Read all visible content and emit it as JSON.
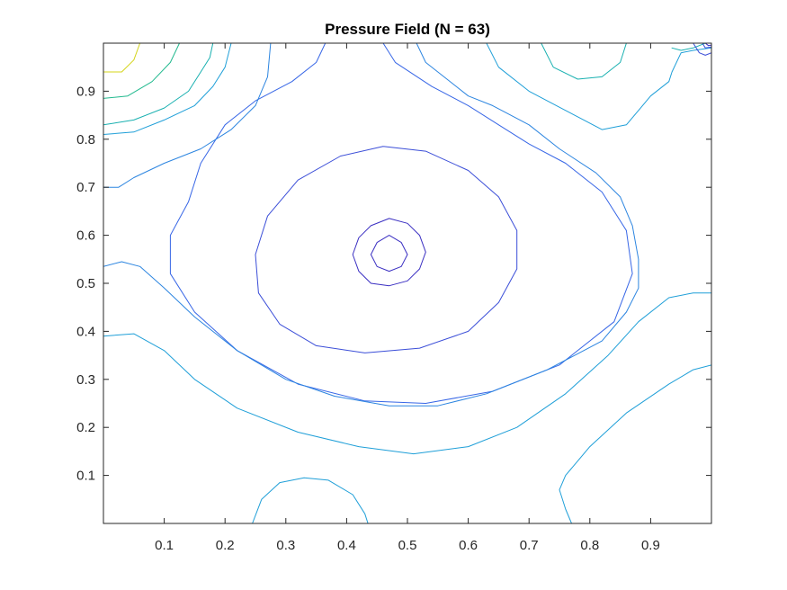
{
  "chart_data": {
    "type": "contour",
    "title": "Pressure Field (N = 63)",
    "xlabel": "",
    "ylabel": "",
    "xlim": [
      0,
      1
    ],
    "ylim": [
      0,
      1
    ],
    "xticks": [
      0.1,
      0.2,
      0.3,
      0.4,
      0.5,
      0.6,
      0.7,
      0.8,
      0.9
    ],
    "yticks": [
      0.1,
      0.2,
      0.3,
      0.4,
      0.5,
      0.6,
      0.7,
      0.8,
      0.9
    ],
    "xtick_labels": [
      "0.1",
      "0.2",
      "0.3",
      "0.4",
      "0.5",
      "0.6",
      "0.7",
      "0.8",
      "0.9"
    ],
    "ytick_labels": [
      "0.1",
      "0.2",
      "0.3",
      "0.4",
      "0.5",
      "0.6",
      "0.7",
      "0.8",
      "0.9"
    ],
    "grid": false,
    "colormap": "parula",
    "contours": [
      {
        "color": "#3a2fc2",
        "points": [
          [
            0.47,
            0.6
          ],
          [
            0.49,
            0.585
          ],
          [
            0.5,
            0.56
          ],
          [
            0.49,
            0.535
          ],
          [
            0.47,
            0.525
          ],
          [
            0.45,
            0.535
          ],
          [
            0.44,
            0.56
          ],
          [
            0.45,
            0.585
          ],
          [
            0.47,
            0.6
          ]
        ]
      },
      {
        "color": "#3a2fc2",
        "points": [
          [
            0.47,
            0.635
          ],
          [
            0.5,
            0.625
          ],
          [
            0.52,
            0.6
          ],
          [
            0.53,
            0.565
          ],
          [
            0.52,
            0.53
          ],
          [
            0.5,
            0.505
          ],
          [
            0.47,
            0.495
          ],
          [
            0.44,
            0.5
          ],
          [
            0.42,
            0.525
          ],
          [
            0.41,
            0.56
          ],
          [
            0.42,
            0.595
          ],
          [
            0.44,
            0.62
          ],
          [
            0.47,
            0.635
          ]
        ]
      },
      {
        "color": "#3b4ed8",
        "points": [
          [
            0.46,
            0.785
          ],
          [
            0.53,
            0.775
          ],
          [
            0.6,
            0.735
          ],
          [
            0.65,
            0.68
          ],
          [
            0.68,
            0.61
          ],
          [
            0.68,
            0.53
          ],
          [
            0.65,
            0.46
          ],
          [
            0.6,
            0.4
          ],
          [
            0.52,
            0.365
          ],
          [
            0.43,
            0.355
          ],
          [
            0.35,
            0.37
          ],
          [
            0.29,
            0.415
          ],
          [
            0.255,
            0.48
          ],
          [
            0.25,
            0.56
          ],
          [
            0.27,
            0.64
          ],
          [
            0.32,
            0.715
          ],
          [
            0.39,
            0.765
          ],
          [
            0.46,
            0.785
          ]
        ]
      },
      {
        "color": "#3766e6",
        "points": [
          [
            0.365,
            1.0
          ],
          [
            0.35,
            0.96
          ],
          [
            0.31,
            0.92
          ],
          [
            0.25,
            0.88
          ],
          [
            0.2,
            0.83
          ],
          [
            0.16,
            0.75
          ],
          [
            0.14,
            0.67
          ],
          [
            0.11,
            0.6
          ],
          [
            0.11,
            0.52
          ],
          [
            0.15,
            0.44
          ],
          [
            0.22,
            0.36
          ],
          [
            0.32,
            0.29
          ],
          [
            0.43,
            0.255
          ],
          [
            0.53,
            0.25
          ],
          [
            0.64,
            0.275
          ],
          [
            0.75,
            0.33
          ],
          [
            0.84,
            0.42
          ],
          [
            0.87,
            0.52
          ],
          [
            0.86,
            0.61
          ],
          [
            0.82,
            0.69
          ],
          [
            0.76,
            0.75
          ],
          [
            0.7,
            0.79
          ],
          [
            0.65,
            0.83
          ],
          [
            0.6,
            0.87
          ],
          [
            0.54,
            0.91
          ],
          [
            0.48,
            0.96
          ],
          [
            0.46,
            1.0
          ]
        ]
      },
      {
        "color": "#2c85e0",
        "points": [
          [
            0.275,
            1.0
          ],
          [
            0.27,
            0.93
          ],
          [
            0.25,
            0.87
          ],
          [
            0.21,
            0.82
          ],
          [
            0.16,
            0.78
          ],
          [
            0.1,
            0.75
          ],
          [
            0.05,
            0.72
          ],
          [
            0.025,
            0.7
          ],
          [
            0.0,
            0.7
          ]
        ]
      },
      {
        "color": "#2c85e0",
        "points": [
          [
            0.0,
            0.535
          ],
          [
            0.03,
            0.545
          ],
          [
            0.06,
            0.535
          ],
          [
            0.1,
            0.49
          ],
          [
            0.15,
            0.43
          ],
          [
            0.22,
            0.36
          ],
          [
            0.3,
            0.3
          ],
          [
            0.38,
            0.265
          ],
          [
            0.47,
            0.245
          ],
          [
            0.55,
            0.245
          ],
          [
            0.63,
            0.27
          ],
          [
            0.73,
            0.32
          ],
          [
            0.82,
            0.38
          ],
          [
            0.86,
            0.44
          ],
          [
            0.88,
            0.49
          ],
          [
            0.88,
            0.55
          ],
          [
            0.87,
            0.62
          ],
          [
            0.85,
            0.68
          ],
          [
            0.81,
            0.73
          ],
          [
            0.75,
            0.78
          ],
          [
            0.7,
            0.83
          ],
          [
            0.64,
            0.87
          ],
          [
            0.6,
            0.89
          ],
          [
            0.56,
            0.93
          ],
          [
            0.53,
            0.96
          ],
          [
            0.515,
            1.0
          ]
        ]
      },
      {
        "color": "#1f9fd8",
        "points": [
          [
            0.0,
            0.39
          ],
          [
            0.05,
            0.395
          ],
          [
            0.1,
            0.36
          ],
          [
            0.15,
            0.3
          ],
          [
            0.22,
            0.24
          ],
          [
            0.32,
            0.19
          ],
          [
            0.42,
            0.16
          ],
          [
            0.51,
            0.145
          ],
          [
            0.6,
            0.16
          ],
          [
            0.68,
            0.2
          ],
          [
            0.76,
            0.27
          ],
          [
            0.83,
            0.35
          ],
          [
            0.88,
            0.42
          ],
          [
            0.93,
            0.47
          ],
          [
            0.97,
            0.48
          ],
          [
            1.0,
            0.48
          ]
        ]
      },
      {
        "color": "#1f9fd8",
        "points": [
          [
            0.245,
            0.0
          ],
          [
            0.26,
            0.05
          ],
          [
            0.29,
            0.085
          ],
          [
            0.33,
            0.095
          ],
          [
            0.37,
            0.09
          ],
          [
            0.41,
            0.06
          ],
          [
            0.43,
            0.02
          ],
          [
            0.435,
            0.0
          ]
        ]
      },
      {
        "color": "#1f9fd8",
        "points": [
          [
            0.77,
            0.0
          ],
          [
            0.76,
            0.03
          ],
          [
            0.75,
            0.07
          ],
          [
            0.76,
            0.1
          ],
          [
            0.8,
            0.16
          ],
          [
            0.86,
            0.23
          ],
          [
            0.93,
            0.29
          ],
          [
            0.97,
            0.32
          ],
          [
            1.0,
            0.33
          ]
        ]
      },
      {
        "color": "#1f9fd8",
        "points": [
          [
            0.63,
            1.0
          ],
          [
            0.65,
            0.95
          ],
          [
            0.7,
            0.9
          ],
          [
            0.76,
            0.86
          ],
          [
            0.82,
            0.82
          ],
          [
            0.86,
            0.83
          ],
          [
            0.88,
            0.86
          ],
          [
            0.9,
            0.89
          ],
          [
            0.93,
            0.92
          ],
          [
            0.935,
            0.94
          ],
          [
            0.95,
            0.98
          ],
          [
            0.97,
            0.985
          ],
          [
            1.0,
            0.99
          ]
        ]
      },
      {
        "color": "#1f9fd8",
        "points": [
          [
            0.0,
            0.81
          ],
          [
            0.05,
            0.815
          ],
          [
            0.1,
            0.84
          ],
          [
            0.15,
            0.87
          ],
          [
            0.18,
            0.91
          ],
          [
            0.2,
            0.95
          ],
          [
            0.21,
            1.0
          ]
        ]
      },
      {
        "color": "#18b0b0",
        "points": [
          [
            0.0,
            0.83
          ],
          [
            0.05,
            0.84
          ],
          [
            0.1,
            0.865
          ],
          [
            0.14,
            0.9
          ],
          [
            0.16,
            0.94
          ],
          [
            0.175,
            0.97
          ],
          [
            0.18,
            1.0
          ]
        ]
      },
      {
        "color": "#18b0b0",
        "points": [
          [
            0.72,
            1.0
          ],
          [
            0.74,
            0.95
          ],
          [
            0.78,
            0.925
          ],
          [
            0.82,
            0.93
          ],
          [
            0.85,
            0.96
          ],
          [
            0.86,
            1.0
          ]
        ]
      },
      {
        "color": "#18b0b0",
        "points": [
          [
            0.935,
            0.99
          ],
          [
            0.95,
            0.985
          ],
          [
            0.97,
            0.99
          ],
          [
            0.98,
            0.995
          ],
          [
            0.99,
            1.0
          ]
        ]
      },
      {
        "color": "#21b98e",
        "points": [
          [
            0.0,
            0.885
          ],
          [
            0.04,
            0.89
          ],
          [
            0.08,
            0.92
          ],
          [
            0.11,
            0.96
          ],
          [
            0.125,
            1.0
          ]
        ]
      },
      {
        "color": "#d4d41a",
        "points": [
          [
            0.0,
            0.94
          ],
          [
            0.03,
            0.94
          ],
          [
            0.05,
            0.965
          ],
          [
            0.06,
            1.0
          ]
        ]
      },
      {
        "color": "#3b4ed8",
        "points": [
          [
            0.97,
            1.0
          ],
          [
            0.98,
            0.98
          ],
          [
            0.99,
            0.975
          ],
          [
            1.0,
            0.98
          ]
        ]
      },
      {
        "color": "#3b4ed8",
        "points": [
          [
            0.985,
            1.0
          ],
          [
            0.99,
            0.99
          ],
          [
            1.0,
            0.992
          ]
        ]
      },
      {
        "color": "#3a2fc2",
        "points": [
          [
            0.99,
            1.0
          ],
          [
            0.995,
            0.995
          ],
          [
            1.0,
            0.996
          ]
        ]
      }
    ]
  }
}
